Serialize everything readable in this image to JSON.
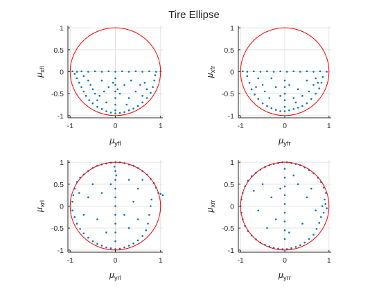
{
  "figure": {
    "title": "Tire Ellipse"
  },
  "colors": {
    "background": "#ffffff",
    "axes_line": "#262626",
    "grid": "#e3e3e3",
    "points": "#0072bd",
    "circle": "#ff0000"
  },
  "chart_data": [
    {
      "type": "scatter",
      "panel": "front-left",
      "xlabel": "μ",
      "xlabel_sub": "yfl",
      "ylabel": "μ",
      "ylabel_sub": "xfl",
      "xlim": [
        -1.05,
        1.05
      ],
      "ylim": [
        -1.05,
        1.05
      ],
      "xticks": [
        -1,
        0,
        1
      ],
      "xticklabels": [
        "-1",
        "0",
        "1"
      ],
      "yticks": [
        -1,
        -0.5,
        0,
        0.5,
        1
      ],
      "yticklabels": [
        "-1",
        "-0.5",
        "0",
        "0.5",
        "1"
      ],
      "grid": true,
      "reference_circle": {
        "radius": 1,
        "color": "#ff0000"
      },
      "points": [
        [
          -0.95,
          0.01
        ],
        [
          -0.85,
          0.0
        ],
        [
          -0.75,
          0.01
        ],
        [
          -0.6,
          0.0
        ],
        [
          -0.45,
          0.01
        ],
        [
          -0.3,
          0.0
        ],
        [
          -0.15,
          0.01
        ],
        [
          0.0,
          0.0
        ],
        [
          0.15,
          0.01
        ],
        [
          0.3,
          0.0
        ],
        [
          0.45,
          0.01
        ],
        [
          0.6,
          0.0
        ],
        [
          0.75,
          0.01
        ],
        [
          0.9,
          0.0
        ],
        [
          1.0,
          0.01
        ],
        [
          -0.9,
          -0.05
        ],
        [
          -0.85,
          -0.15
        ],
        [
          -0.8,
          -0.25
        ],
        [
          -0.75,
          -0.35
        ],
        [
          -0.7,
          -0.45
        ],
        [
          -0.65,
          -0.55
        ],
        [
          -0.58,
          -0.65
        ],
        [
          -0.5,
          -0.72
        ],
        [
          -0.4,
          -0.8
        ],
        [
          -0.3,
          -0.85
        ],
        [
          -0.2,
          -0.9
        ],
        [
          -0.1,
          -0.93
        ],
        [
          0.0,
          -0.95
        ],
        [
          0.1,
          -0.94
        ],
        [
          0.2,
          -0.92
        ],
        [
          0.3,
          -0.88
        ],
        [
          0.4,
          -0.84
        ],
        [
          0.5,
          -0.78
        ],
        [
          0.6,
          -0.7
        ],
        [
          0.7,
          -0.6
        ],
        [
          0.78,
          -0.48
        ],
        [
          0.83,
          -0.35
        ],
        [
          0.86,
          -0.2
        ],
        [
          0.88,
          -0.08
        ],
        [
          -0.6,
          -0.2
        ],
        [
          -0.55,
          -0.3
        ],
        [
          -0.5,
          -0.4
        ],
        [
          -0.45,
          -0.5
        ],
        [
          -0.35,
          -0.55
        ],
        [
          -0.25,
          -0.45
        ],
        [
          -0.15,
          -0.35
        ],
        [
          -0.05,
          -0.25
        ],
        [
          0.0,
          -0.15
        ],
        [
          0.0,
          -0.3
        ],
        [
          0.0,
          -0.45
        ],
        [
          0.0,
          -0.6
        ],
        [
          0.0,
          -0.75
        ],
        [
          0.0,
          -0.88
        ],
        [
          0.05,
          -0.4
        ],
        [
          0.1,
          -0.5
        ],
        [
          0.2,
          -0.3
        ],
        [
          0.3,
          -0.6
        ],
        [
          0.35,
          -0.2
        ],
        [
          0.45,
          -0.45
        ],
        [
          0.55,
          -0.3
        ],
        [
          0.6,
          -0.55
        ],
        [
          0.65,
          -0.25
        ],
        [
          -0.7,
          -0.1
        ],
        [
          -0.3,
          -0.2
        ],
        [
          0.25,
          -0.75
        ],
        [
          -0.4,
          -0.65
        ],
        [
          0.7,
          -0.4
        ],
        [
          -0.2,
          -0.7
        ]
      ]
    },
    {
      "type": "scatter",
      "panel": "front-right",
      "xlabel": "μ",
      "xlabel_sub": "yfr",
      "ylabel": "μ",
      "ylabel_sub": "xfr",
      "xlim": [
        -1.05,
        1.05
      ],
      "ylim": [
        -1.05,
        1.05
      ],
      "xticks": [
        -1,
        0,
        1
      ],
      "xticklabels": [
        "-1",
        "0",
        "1"
      ],
      "yticks": [
        -1,
        -0.5,
        0,
        0.5,
        1
      ],
      "yticklabels": [
        "-1",
        "-0.5",
        "0",
        "0.5",
        "1"
      ],
      "grid": true,
      "reference_circle": {
        "radius": 1,
        "color": "#ff0000"
      },
      "points": [
        [
          -0.95,
          0.01
        ],
        [
          -0.85,
          0.0
        ],
        [
          -0.7,
          0.01
        ],
        [
          -0.55,
          0.0
        ],
        [
          -0.4,
          0.01
        ],
        [
          -0.25,
          0.0
        ],
        [
          -0.1,
          0.01
        ],
        [
          0.05,
          0.0
        ],
        [
          0.2,
          0.01
        ],
        [
          0.35,
          0.0
        ],
        [
          0.5,
          0.01
        ],
        [
          0.65,
          0.0
        ],
        [
          0.8,
          0.01
        ],
        [
          0.95,
          0.0
        ],
        [
          -0.85,
          -0.1
        ],
        [
          -0.8,
          -0.25
        ],
        [
          -0.75,
          -0.4
        ],
        [
          -0.68,
          -0.52
        ],
        [
          -0.6,
          -0.62
        ],
        [
          -0.5,
          -0.72
        ],
        [
          -0.4,
          -0.78
        ],
        [
          -0.3,
          -0.83
        ],
        [
          -0.2,
          -0.87
        ],
        [
          -0.1,
          -0.9
        ],
        [
          0.0,
          -0.9
        ],
        [
          0.1,
          -0.88
        ],
        [
          0.2,
          -0.85
        ],
        [
          0.3,
          -0.82
        ],
        [
          0.4,
          -0.78
        ],
        [
          0.5,
          -0.72
        ],
        [
          0.6,
          -0.62
        ],
        [
          0.7,
          -0.5
        ],
        [
          0.78,
          -0.38
        ],
        [
          0.83,
          -0.25
        ],
        [
          0.86,
          -0.12
        ],
        [
          -0.5,
          -0.3
        ],
        [
          -0.45,
          -0.45
        ],
        [
          -0.35,
          -0.6
        ],
        [
          -0.2,
          -0.35
        ],
        [
          -0.1,
          -0.55
        ],
        [
          0.0,
          -0.2
        ],
        [
          0.0,
          -0.35
        ],
        [
          0.0,
          -0.5
        ],
        [
          0.0,
          -0.65
        ],
        [
          0.0,
          -0.8
        ],
        [
          0.1,
          -0.3
        ],
        [
          0.2,
          -0.6
        ],
        [
          0.3,
          -0.4
        ],
        [
          0.4,
          -0.55
        ],
        [
          0.5,
          -0.2
        ],
        [
          0.55,
          -0.45
        ],
        [
          0.65,
          -0.3
        ],
        [
          -0.6,
          -0.15
        ],
        [
          -0.3,
          -0.15
        ],
        [
          0.25,
          -0.7
        ],
        [
          0.7,
          -0.15
        ],
        [
          -0.65,
          -0.35
        ],
        [
          0.75,
          -0.25
        ]
      ]
    },
    {
      "type": "scatter",
      "panel": "rear-left",
      "xlabel": "μ",
      "xlabel_sub": "yrl",
      "ylabel": "μ",
      "ylabel_sub": "xrl",
      "xlim": [
        -1.05,
        1.05
      ],
      "ylim": [
        -1.05,
        1.05
      ],
      "xticks": [
        -1,
        0,
        1
      ],
      "xticklabels": [
        "-1",
        "0",
        "1"
      ],
      "yticks": [
        -1,
        -0.5,
        0,
        0.5,
        1
      ],
      "yticklabels": [
        "-1",
        "-0.5",
        "0",
        "0.5",
        "1"
      ],
      "grid": true,
      "reference_circle": {
        "radius": 1,
        "color": "#ff0000"
      },
      "points": [
        [
          -0.95,
          0.1
        ],
        [
          -0.93,
          0.25
        ],
        [
          -0.9,
          0.4
        ],
        [
          -0.85,
          0.55
        ],
        [
          -0.78,
          0.65
        ],
        [
          -0.7,
          0.72
        ],
        [
          -0.6,
          0.8
        ],
        [
          -0.5,
          0.87
        ],
        [
          -0.4,
          0.92
        ],
        [
          -0.3,
          0.95
        ],
        [
          -0.2,
          0.97
        ],
        [
          -0.1,
          0.99
        ],
        [
          0.0,
          1.0
        ],
        [
          0.1,
          1.0
        ],
        [
          0.2,
          0.98
        ],
        [
          0.3,
          0.95
        ],
        [
          0.4,
          0.92
        ],
        [
          0.5,
          0.87
        ],
        [
          0.6,
          0.8
        ],
        [
          0.7,
          0.72
        ],
        [
          0.78,
          0.62
        ],
        [
          0.85,
          0.52
        ],
        [
          0.9,
          0.42
        ],
        [
          0.95,
          0.3
        ],
        [
          1.0,
          0.28
        ],
        [
          1.05,
          0.25
        ],
        [
          -0.95,
          -0.1
        ],
        [
          -0.9,
          -0.25
        ],
        [
          -0.85,
          -0.4
        ],
        [
          -0.78,
          -0.52
        ],
        [
          -0.7,
          -0.62
        ],
        [
          -0.6,
          -0.72
        ],
        [
          -0.5,
          -0.8
        ],
        [
          -0.4,
          -0.86
        ],
        [
          -0.3,
          -0.9
        ],
        [
          -0.2,
          -0.94
        ],
        [
          -0.1,
          -0.96
        ],
        [
          0.0,
          -0.98
        ],
        [
          0.1,
          -0.97
        ],
        [
          0.2,
          -0.94
        ],
        [
          0.3,
          -0.9
        ],
        [
          0.4,
          -0.85
        ],
        [
          0.5,
          -0.78
        ],
        [
          0.6,
          -0.68
        ],
        [
          0.68,
          -0.55
        ],
        [
          0.72,
          -0.4
        ],
        [
          0.75,
          -0.2
        ],
        [
          0.78,
          0.0
        ],
        [
          0.8,
          0.15
        ],
        [
          0.0,
          0.8
        ],
        [
          0.0,
          0.6
        ],
        [
          0.0,
          0.4
        ],
        [
          0.0,
          0.2
        ],
        [
          0.0,
          0.0
        ],
        [
          0.0,
          -0.2
        ],
        [
          0.0,
          -0.4
        ],
        [
          0.0,
          -0.6
        ],
        [
          0.0,
          -0.8
        ],
        [
          -0.02,
          0.9
        ],
        [
          0.02,
          0.7
        ],
        [
          -0.5,
          0.5
        ],
        [
          -0.3,
          0.3
        ],
        [
          -0.6,
          0.2
        ],
        [
          0.3,
          0.6
        ],
        [
          0.5,
          0.4
        ],
        [
          -0.4,
          -0.3
        ],
        [
          -0.2,
          -0.6
        ],
        [
          0.3,
          -0.5
        ],
        [
          0.4,
          0.1
        ],
        [
          -0.7,
          -0.2
        ],
        [
          0.2,
          -0.2
        ],
        [
          -0.1,
          0.5
        ],
        [
          0.6,
          0.6
        ],
        [
          -0.8,
          0.3
        ],
        [
          0.5,
          -0.3
        ]
      ]
    },
    {
      "type": "scatter",
      "panel": "rear-right",
      "xlabel": "μ",
      "xlabel_sub": "yrr",
      "ylabel": "μ",
      "ylabel_sub": "xrr",
      "xlim": [
        -1.05,
        1.05
      ],
      "ylim": [
        -1.05,
        1.05
      ],
      "xticks": [
        -1,
        0,
        1
      ],
      "xticklabels": [
        "-1",
        "0",
        "1"
      ],
      "yticks": [
        -1,
        -0.5,
        0,
        0.5,
        1
      ],
      "yticklabels": [
        "-1",
        "-0.5",
        "0",
        "0.5",
        "1"
      ],
      "grid": true,
      "reference_circle": {
        "radius": 1,
        "color": "#ff0000"
      },
      "points": [
        [
          -1.0,
          0.0
        ],
        [
          -0.98,
          0.15
        ],
        [
          -0.95,
          0.3
        ],
        [
          -0.9,
          0.45
        ],
        [
          -0.83,
          0.58
        ],
        [
          -0.75,
          0.68
        ],
        [
          -0.65,
          0.76
        ],
        [
          -0.55,
          0.83
        ],
        [
          -0.45,
          0.89
        ],
        [
          -0.35,
          0.93
        ],
        [
          -0.25,
          0.96
        ],
        [
          -0.15,
          0.98
        ],
        [
          -0.05,
          1.0
        ],
        [
          0.05,
          1.0
        ],
        [
          0.15,
          0.98
        ],
        [
          0.25,
          0.96
        ],
        [
          0.35,
          0.93
        ],
        [
          0.45,
          0.88
        ],
        [
          0.55,
          0.82
        ],
        [
          0.65,
          0.75
        ],
        [
          0.75,
          0.65
        ],
        [
          0.82,
          0.55
        ],
        [
          0.88,
          0.42
        ],
        [
          0.93,
          0.3
        ],
        [
          0.9,
          0.15
        ],
        [
          0.85,
          0.0
        ],
        [
          0.88,
          -0.15
        ],
        [
          -0.98,
          -0.15
        ],
        [
          -0.95,
          -0.3
        ],
        [
          -0.9,
          -0.45
        ],
        [
          -0.83,
          -0.57
        ],
        [
          -0.75,
          -0.67
        ],
        [
          -0.65,
          -0.76
        ],
        [
          -0.55,
          -0.83
        ],
        [
          -0.45,
          -0.88
        ],
        [
          -0.35,
          -0.92
        ],
        [
          -0.25,
          -0.95
        ],
        [
          -0.15,
          -0.97
        ],
        [
          -0.05,
          -0.98
        ],
        [
          0.05,
          -0.98
        ],
        [
          0.15,
          -0.96
        ],
        [
          0.25,
          -0.93
        ],
        [
          0.35,
          -0.89
        ],
        [
          0.45,
          -0.83
        ],
        [
          0.55,
          -0.75
        ],
        [
          0.65,
          -0.65
        ],
        [
          0.72,
          -0.52
        ],
        [
          0.78,
          -0.38
        ],
        [
          0.82,
          -0.25
        ],
        [
          0.0,
          0.85
        ],
        [
          0.0,
          0.65
        ],
        [
          0.0,
          0.45
        ],
        [
          0.0,
          0.25
        ],
        [
          0.0,
          0.05
        ],
        [
          0.0,
          -0.15
        ],
        [
          0.0,
          -0.35
        ],
        [
          0.0,
          -0.55
        ],
        [
          0.0,
          -0.75
        ],
        [
          -0.5,
          0.5
        ],
        [
          -0.3,
          0.2
        ],
        [
          -0.6,
          -0.1
        ],
        [
          0.3,
          0.5
        ],
        [
          0.5,
          0.2
        ],
        [
          0.4,
          -0.4
        ],
        [
          -0.4,
          -0.5
        ],
        [
          0.2,
          0.7
        ],
        [
          -0.2,
          -0.3
        ],
        [
          0.6,
          0.4
        ],
        [
          -0.7,
          0.35
        ],
        [
          0.1,
          -0.6
        ],
        [
          -0.1,
          0.4
        ],
        [
          0.7,
          -0.1
        ],
        [
          0.92,
          0.05
        ],
        [
          0.95,
          -0.05
        ]
      ]
    }
  ]
}
